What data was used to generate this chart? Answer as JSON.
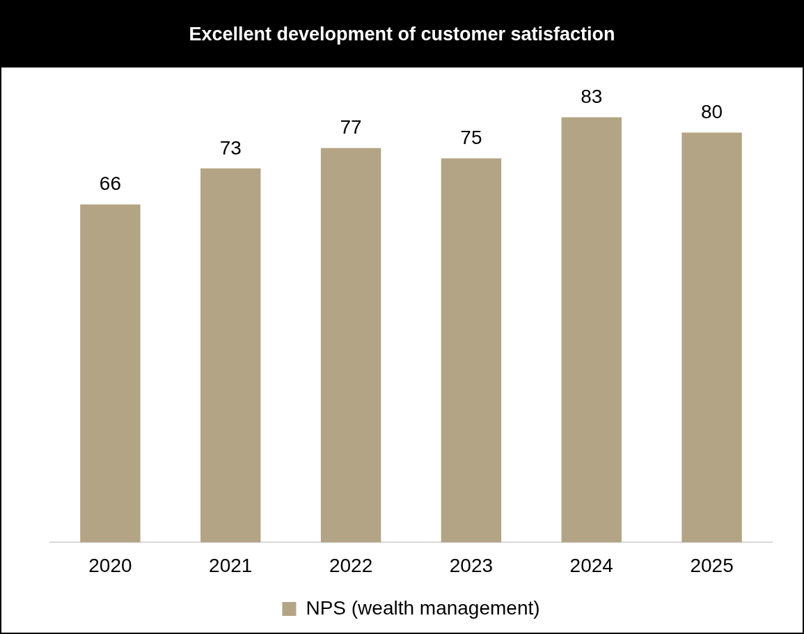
{
  "chart_data": {
    "type": "bar",
    "title": "Excellent development of customer satisfaction",
    "categories": [
      "2020",
      "2021",
      "2022",
      "2023",
      "2024",
      "2025"
    ],
    "series": [
      {
        "name": "NPS (wealth management)",
        "color": "#b3a485",
        "values": [
          66,
          73,
          77,
          75,
          83,
          80
        ]
      }
    ],
    "tick_labels": "x",
    "data_labels": true,
    "grid": false,
    "legend": "bottom"
  }
}
